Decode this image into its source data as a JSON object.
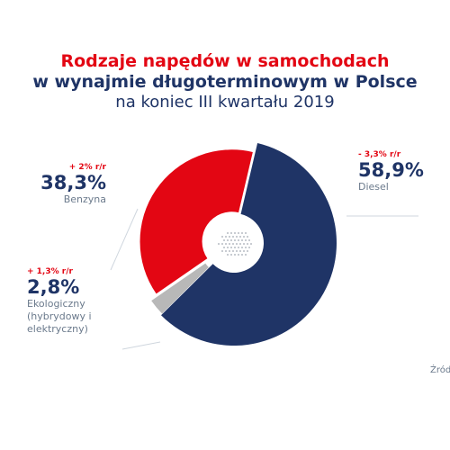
{
  "title": {
    "line1": "Rodzaje napędów w samochodach",
    "line2": "w wynajmie długoterminowym w Polsce",
    "line3": "na koniec III kwartału 2019"
  },
  "source": "Źród",
  "colors": {
    "diesel": "#1f3466",
    "benzyna": "#e30613",
    "ekologiczny": "#b8b8b8",
    "change": "#e30613",
    "text": "#1f3466"
  },
  "chart_data": {
    "type": "pie",
    "title": "Rodzaje napędów w samochodach w wynajmie długoterminowym w Polsce na koniec III kwartału 2019",
    "unit": "%",
    "slices": [
      {
        "name": "Diesel",
        "value": 58.9,
        "label": "58,9%",
        "change": "- 3,3% r/r",
        "color": "#1f3466"
      },
      {
        "name": "Ekologiczny (hybrydowy i elektryczny)",
        "value": 2.8,
        "label": "2,8%",
        "change": "+ 1,3% r/r",
        "color": "#b8b8b8"
      },
      {
        "name": "Benzyna",
        "value": 38.3,
        "label": "38,3%",
        "change": "+ 2% r/r",
        "color": "#e30613"
      }
    ]
  },
  "labels": {
    "benzyna": {
      "change": "+ 2% r/r",
      "pct": "38,3%",
      "name": "Benzyna"
    },
    "diesel": {
      "change": "- 3,3% r/r",
      "pct": "58,9%",
      "name": "Diesel"
    },
    "eko": {
      "change": "+ 1,3% r/r",
      "pct": "2,8%",
      "name1": "Ekologiczny",
      "name2": "(hybrydowy i",
      "name3": "elektryczny)"
    }
  }
}
